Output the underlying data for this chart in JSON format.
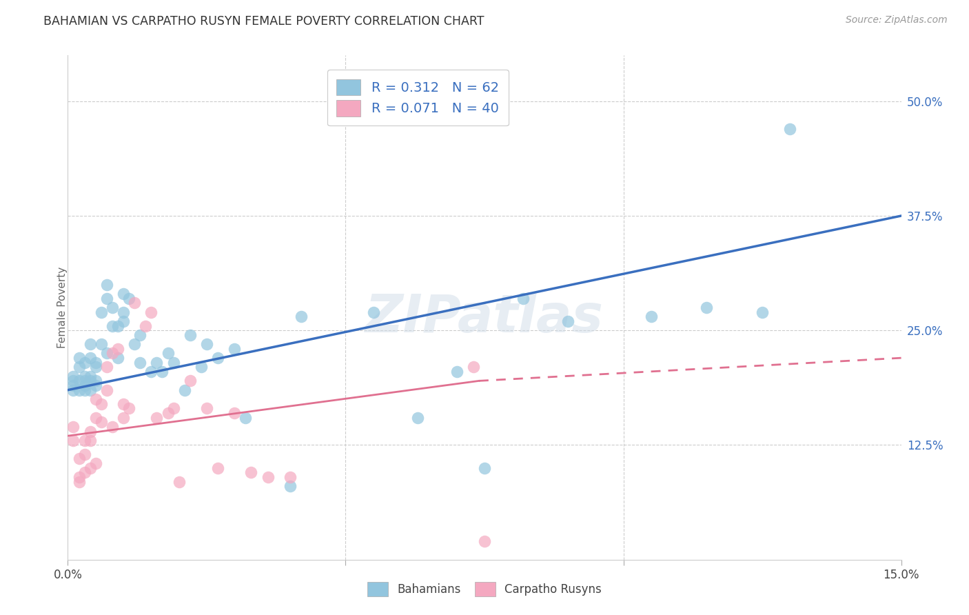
{
  "title": "BAHAMIAN VS CARPATHO RUSYN FEMALE POVERTY CORRELATION CHART",
  "source": "Source: ZipAtlas.com",
  "ylabel": "Female Poverty",
  "xlim": [
    0.0,
    0.15
  ],
  "ylim": [
    0.0,
    0.55
  ],
  "xticks": [
    0.0,
    0.05,
    0.1,
    0.15
  ],
  "xticklabels": [
    "0.0%",
    "",
    "",
    "15.0%"
  ],
  "ytick_positions": [
    0.125,
    0.25,
    0.375,
    0.5
  ],
  "ytick_labels": [
    "12.5%",
    "25.0%",
    "37.5%",
    "50.0%"
  ],
  "grid_color": "#cccccc",
  "background_color": "#ffffff",
  "bahamian_color": "#92c5de",
  "carpatho_color": "#f4a8c0",
  "blue_line_color": "#3a6fbf",
  "pink_line_color": "#e07090",
  "R_bahamian": 0.312,
  "N_bahamian": 62,
  "R_carpatho": 0.071,
  "N_carpatho": 40,
  "legend_label_1": "Bahamians",
  "legend_label_2": "Carpatho Rusyns",
  "watermark": "ZIPatlas",
  "blue_line_x0": 0.0,
  "blue_line_y0": 0.185,
  "blue_line_x1": 0.15,
  "blue_line_y1": 0.375,
  "pink_line_x0": 0.0,
  "pink_line_y0": 0.135,
  "pink_line_x1_solid": 0.074,
  "pink_line_y1_solid": 0.195,
  "pink_line_x1_dash": 0.15,
  "pink_line_y1_dash": 0.22,
  "bahamian_x": [
    0.001,
    0.001,
    0.001,
    0.001,
    0.002,
    0.002,
    0.002,
    0.002,
    0.003,
    0.003,
    0.003,
    0.003,
    0.003,
    0.004,
    0.004,
    0.004,
    0.004,
    0.004,
    0.005,
    0.005,
    0.005,
    0.005,
    0.006,
    0.006,
    0.007,
    0.007,
    0.007,
    0.008,
    0.008,
    0.009,
    0.009,
    0.01,
    0.01,
    0.01,
    0.011,
    0.012,
    0.013,
    0.013,
    0.015,
    0.016,
    0.017,
    0.018,
    0.019,
    0.021,
    0.022,
    0.024,
    0.025,
    0.027,
    0.03,
    0.032,
    0.04,
    0.042,
    0.055,
    0.063,
    0.07,
    0.075,
    0.082,
    0.09,
    0.105,
    0.115,
    0.125,
    0.13
  ],
  "bahamian_y": [
    0.195,
    0.2,
    0.185,
    0.19,
    0.21,
    0.22,
    0.185,
    0.195,
    0.19,
    0.195,
    0.185,
    0.215,
    0.2,
    0.22,
    0.235,
    0.2,
    0.185,
    0.195,
    0.21,
    0.19,
    0.195,
    0.215,
    0.235,
    0.27,
    0.285,
    0.3,
    0.225,
    0.255,
    0.275,
    0.255,
    0.22,
    0.26,
    0.27,
    0.29,
    0.285,
    0.235,
    0.245,
    0.215,
    0.205,
    0.215,
    0.205,
    0.225,
    0.215,
    0.185,
    0.245,
    0.21,
    0.235,
    0.22,
    0.23,
    0.155,
    0.08,
    0.265,
    0.27,
    0.155,
    0.205,
    0.1,
    0.285,
    0.26,
    0.265,
    0.275,
    0.27,
    0.47
  ],
  "carpatho_x": [
    0.001,
    0.001,
    0.002,
    0.002,
    0.002,
    0.003,
    0.003,
    0.003,
    0.004,
    0.004,
    0.004,
    0.005,
    0.005,
    0.005,
    0.006,
    0.006,
    0.007,
    0.007,
    0.008,
    0.008,
    0.009,
    0.01,
    0.01,
    0.011,
    0.012,
    0.014,
    0.015,
    0.016,
    0.018,
    0.019,
    0.02,
    0.022,
    0.025,
    0.027,
    0.03,
    0.033,
    0.036,
    0.04,
    0.073,
    0.075
  ],
  "carpatho_y": [
    0.13,
    0.145,
    0.085,
    0.09,
    0.11,
    0.095,
    0.13,
    0.115,
    0.13,
    0.14,
    0.1,
    0.155,
    0.175,
    0.105,
    0.15,
    0.17,
    0.185,
    0.21,
    0.145,
    0.225,
    0.23,
    0.155,
    0.17,
    0.165,
    0.28,
    0.255,
    0.27,
    0.155,
    0.16,
    0.165,
    0.085,
    0.195,
    0.165,
    0.1,
    0.16,
    0.095,
    0.09,
    0.09,
    0.21,
    0.02
  ]
}
